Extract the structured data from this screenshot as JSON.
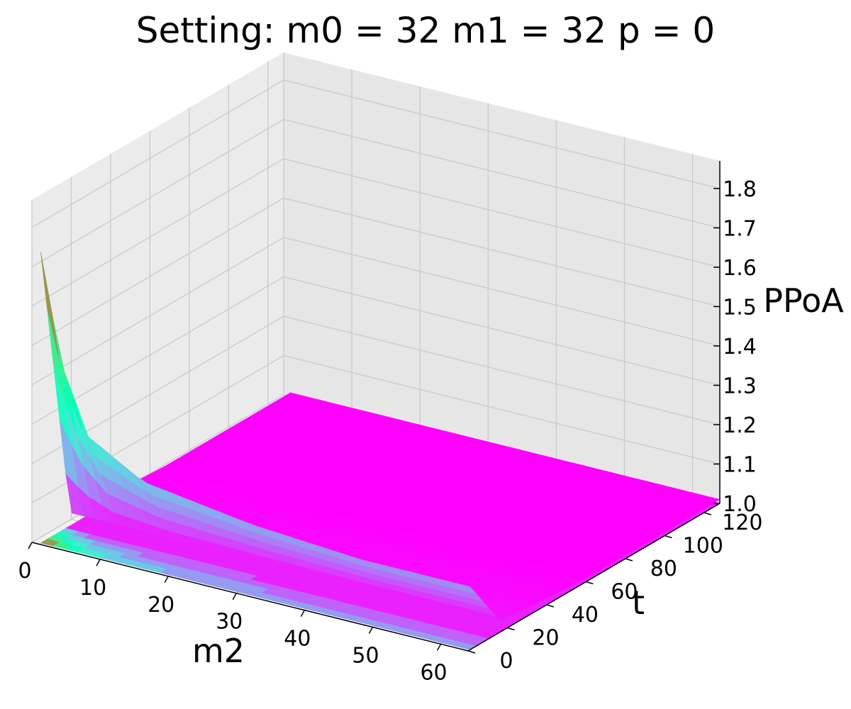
{
  "chart_data": {
    "type": "surface3d",
    "title": "Setting: m0 = 32   m1 = 32   p = 0",
    "xlabel": "m2",
    "ylabel": "t",
    "zlabel": "PPoA",
    "xlim": [
      0,
      64
    ],
    "ylim": [
      0,
      128
    ],
    "zlim": [
      1.0,
      1.87
    ],
    "x_ticks": [
      "0",
      "10",
      "20",
      "30",
      "40",
      "50",
      "60"
    ],
    "y_ticks": [
      "0",
      "20",
      "40",
      "60",
      "80",
      "100",
      "120"
    ],
    "z_ticks": [
      "1.0",
      "1.1",
      "1.2",
      "1.3",
      "1.4",
      "1.5",
      "1.6",
      "1.7",
      "1.8"
    ],
    "colormap": "rainbow",
    "contour_offset": 1.0,
    "surface": {
      "m2": [
        1,
        4,
        8,
        16,
        32,
        48,
        64
      ],
      "t": [
        1,
        16,
        32,
        64,
        96,
        128
      ],
      "PPoA": [
        [
          1.74,
          1.03,
          1.02,
          1.01,
          1.01,
          1.01
        ],
        [
          1.47,
          1.03,
          1.02,
          1.01,
          1.01,
          1.01
        ],
        [
          1.3,
          1.03,
          1.02,
          1.01,
          1.01,
          1.01
        ],
        [
          1.22,
          1.03,
          1.02,
          1.01,
          1.01,
          1.01
        ],
        [
          1.18,
          1.03,
          1.02,
          1.01,
          1.01,
          1.01
        ],
        [
          1.16,
          1.03,
          1.02,
          1.01,
          1.01,
          1.01
        ],
        [
          1.16,
          1.03,
          1.02,
          1.01,
          1.01,
          1.01
        ]
      ]
    }
  }
}
